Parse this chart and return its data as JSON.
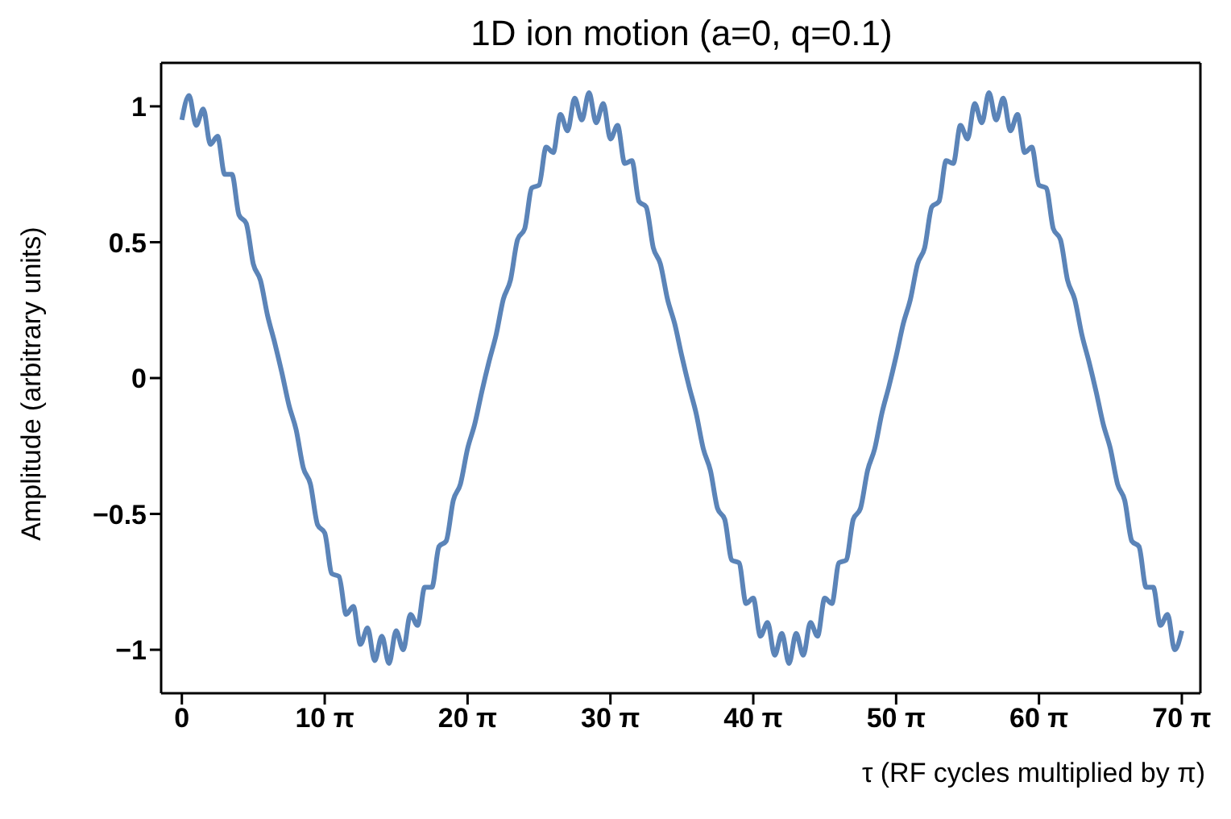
{
  "chart_data": {
    "type": "line",
    "title": "1D ion motion (a=0, q=0.1)",
    "xlabel": "τ (RF cycles multiplied by π)",
    "ylabel": "Amplitude (arbitrary units)",
    "xlim": [
      -4.56,
      223.99
    ],
    "ylim": [
      -1.16,
      1.16
    ],
    "xticks": [
      {
        "value": 0,
        "label": "0"
      },
      {
        "value": 31.4159,
        "label": "10 π"
      },
      {
        "value": 62.8319,
        "label": "20 π"
      },
      {
        "value": 94.2478,
        "label": "30 π"
      },
      {
        "value": 125.6637,
        "label": "40 π"
      },
      {
        "value": 157.0796,
        "label": "50 π"
      },
      {
        "value": 188.4956,
        "label": "60 π"
      },
      {
        "value": 219.9115,
        "label": "70 π"
      }
    ],
    "yticks": [
      {
        "value": -1,
        "label": "−1"
      },
      {
        "value": -0.5,
        "label": "−0.5"
      },
      0,
      0.5,
      1
    ],
    "grid": false,
    "legend": false,
    "marker": "none",
    "line_style": "solid",
    "x": [
      0,
      1.57,
      3.14,
      4.71,
      6.28,
      7.85,
      9.42,
      11.0,
      12.57,
      14.14,
      15.71,
      17.28,
      18.85,
      20.42,
      21.99,
      23.56,
      25.13,
      26.7,
      28.27,
      29.85,
      31.42,
      32.99,
      34.56,
      36.13,
      37.7,
      39.27,
      40.84,
      42.41,
      43.98,
      45.55,
      47.12,
      48.69,
      50.27,
      51.84,
      53.41,
      54.98,
      56.55,
      58.12,
      59.69,
      61.26,
      62.83,
      64.4,
      65.97,
      67.54,
      69.12,
      70.69,
      72.26,
      73.83,
      75.4,
      76.97,
      78.54,
      80.11,
      81.68,
      83.25,
      84.82,
      86.39,
      87.96,
      89.54,
      91.11,
      92.68,
      94.25,
      95.82,
      97.39,
      98.96,
      100.53,
      102.1,
      103.67,
      105.24,
      106.81,
      108.38,
      109.96,
      111.53,
      113.1,
      114.67,
      116.24,
      117.81,
      119.38,
      120.95,
      122.52,
      124.09,
      125.66,
      127.23,
      128.81,
      130.38,
      131.95,
      133.52,
      135.09,
      136.66,
      138.23,
      139.8,
      141.37,
      142.94,
      144.51,
      146.08,
      147.65,
      149.23,
      150.8,
      152.37,
      153.94,
      155.51,
      157.08,
      158.65,
      160.22,
      161.79,
      163.36,
      164.93,
      166.5,
      168.08,
      169.65,
      171.22,
      172.79,
      174.36,
      175.93,
      177.5,
      179.07,
      180.64,
      182.21,
      183.78,
      185.35,
      186.92,
      188.5,
      190.07,
      191.64,
      193.21,
      194.78,
      196.35,
      197.92,
      199.49,
      201.06,
      202.63,
      204.2,
      205.77,
      207.35,
      208.92,
      210.49,
      212.06,
      213.63,
      215.2,
      216.77,
      218.34,
      219.91
    ],
    "series": [
      {
        "color": "#5b84b8",
        "values": [
          0.95,
          1.04,
          0.93,
          0.99,
          0.86,
          0.89,
          0.75,
          0.75,
          0.6,
          0.57,
          0.42,
          0.36,
          0.23,
          0.13,
          0.02,
          -0.1,
          -0.19,
          -0.33,
          -0.39,
          -0.54,
          -0.57,
          -0.72,
          -0.73,
          -0.87,
          -0.84,
          -0.98,
          -0.92,
          -1.04,
          -0.95,
          -1.05,
          -0.93,
          -1.0,
          -0.87,
          -0.91,
          -0.77,
          -0.77,
          -0.62,
          -0.6,
          -0.45,
          -0.39,
          -0.26,
          -0.17,
          -0.05,
          0.06,
          0.16,
          0.29,
          0.36,
          0.51,
          0.55,
          0.7,
          0.71,
          0.85,
          0.83,
          0.97,
          0.91,
          1.03,
          0.95,
          1.05,
          0.94,
          1.01,
          0.88,
          0.93,
          0.79,
          0.8,
          0.65,
          0.63,
          0.48,
          0.42,
          0.29,
          0.2,
          0.08,
          -0.03,
          -0.13,
          -0.26,
          -0.34,
          -0.48,
          -0.52,
          -0.67,
          -0.68,
          -0.83,
          -0.81,
          -0.95,
          -0.9,
          -1.02,
          -0.94,
          -1.05,
          -0.94,
          -1.02,
          -0.9,
          -0.95,
          -0.81,
          -0.83,
          -0.68,
          -0.67,
          -0.52,
          -0.48,
          -0.34,
          -0.26,
          -0.13,
          -0.03,
          0.08,
          0.2,
          0.29,
          0.42,
          0.48,
          0.63,
          0.65,
          0.8,
          0.79,
          0.93,
          0.88,
          1.01,
          0.94,
          1.05,
          0.95,
          1.03,
          0.91,
          0.97,
          0.83,
          0.85,
          0.71,
          0.7,
          0.55,
          0.51,
          0.36,
          0.29,
          0.16,
          0.06,
          -0.05,
          -0.17,
          -0.26,
          -0.39,
          -0.45,
          -0.6,
          -0.62,
          -0.77,
          -0.77,
          -0.91,
          -0.87,
          -1.0,
          -0.93
        ]
      }
    ]
  }
}
